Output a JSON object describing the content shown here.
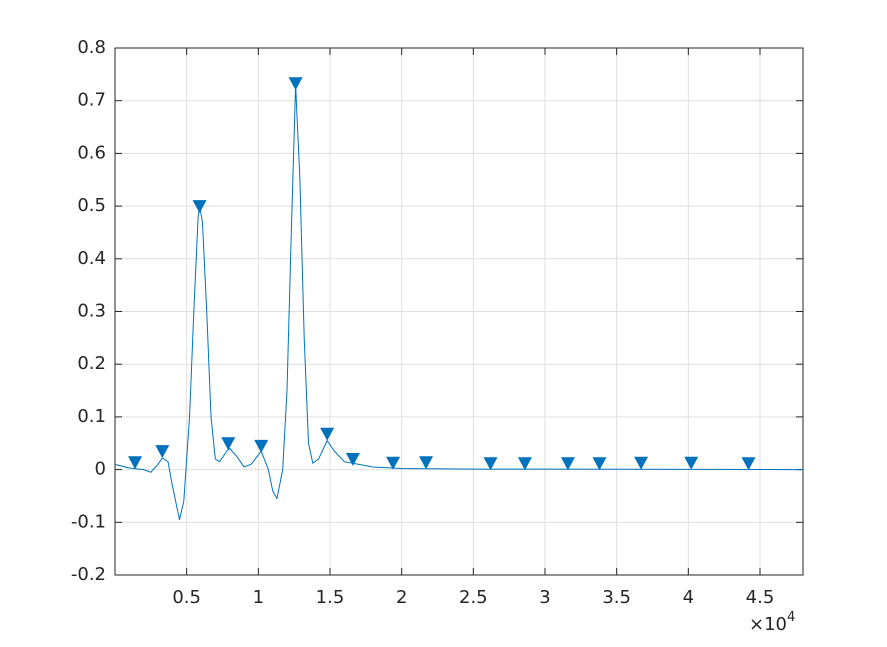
{
  "chart_data": {
    "type": "line",
    "xlim": [
      0,
      4.8
    ],
    "ylim": [
      -0.2,
      0.8
    ],
    "xticks": [
      0.5,
      1,
      1.5,
      2,
      2.5,
      3,
      3.5,
      4,
      4.5
    ],
    "yticks": [
      -0.2,
      -0.1,
      0,
      0.1,
      0.2,
      0.3,
      0.4,
      0.5,
      0.6,
      0.7,
      0.8
    ],
    "x_exponent": {
      "base": "×10",
      "power": "4"
    },
    "grid": true,
    "series": [
      {
        "color": "#0072bd",
        "marker": "none",
        "x": [
          0,
          0.1,
          0.2,
          0.25,
          0.3,
          0.33,
          0.37,
          0.4,
          0.45,
          0.48,
          0.52,
          0.55,
          0.58,
          0.59,
          0.61,
          0.64,
          0.67,
          0.7,
          0.73,
          0.78,
          0.8,
          0.85,
          0.9,
          0.95,
          1.02,
          1.07,
          1.1,
          1.13,
          1.17,
          1.2,
          1.23,
          1.26,
          1.29,
          1.32,
          1.35,
          1.38,
          1.42,
          1.48,
          1.53,
          1.6,
          1.66,
          1.8,
          2.0,
          2.5,
          3.0,
          4.8
        ],
        "values": [
          0.01,
          0.003,
          0.0,
          -0.005,
          0.01,
          0.022,
          0.015,
          -0.03,
          -0.095,
          -0.06,
          0.1,
          0.3,
          0.48,
          0.5,
          0.47,
          0.3,
          0.1,
          0.02,
          0.015,
          0.035,
          0.04,
          0.025,
          0.005,
          0.01,
          0.035,
          0.0,
          -0.04,
          -0.055,
          0.0,
          0.15,
          0.45,
          0.73,
          0.55,
          0.25,
          0.05,
          0.012,
          0.02,
          0.055,
          0.035,
          0.015,
          0.012,
          0.005,
          0.002,
          0.001,
          0.001,
          0.0
        ]
      },
      {
        "color": "#0072bd",
        "marker": "triangle-down",
        "x": [
          0.14,
          0.33,
          0.59,
          0.79,
          1.02,
          1.26,
          1.48,
          1.66,
          1.94,
          2.17,
          2.62,
          2.86,
          3.16,
          3.38,
          3.67,
          4.02,
          4.42
        ],
        "values": [
          0.014,
          0.035,
          0.5,
          0.05,
          0.045,
          0.733,
          0.068,
          0.02,
          0.013,
          0.014,
          0.012,
          0.012,
          0.012,
          0.012,
          0.013,
          0.013,
          0.012
        ]
      }
    ]
  }
}
